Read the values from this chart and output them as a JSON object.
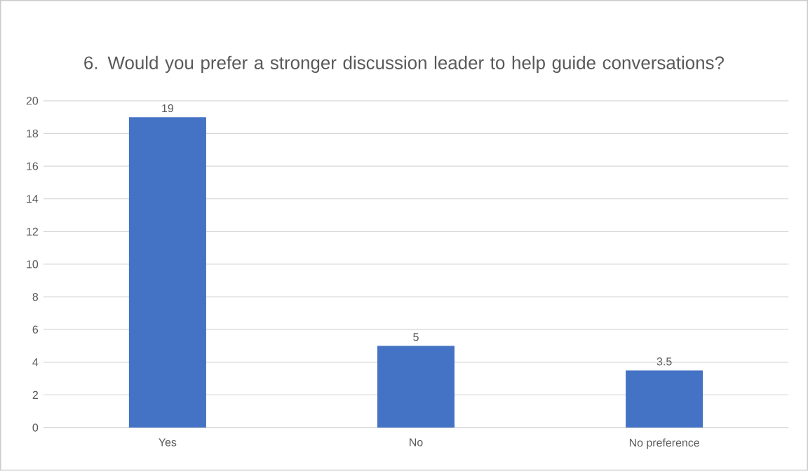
{
  "chart_data": {
    "type": "bar",
    "title": "6. Would you prefer a stronger discussion leader to help guide conversations?",
    "categories": [
      "Yes",
      "No",
      "No preference"
    ],
    "values": [
      19,
      5,
      3.5
    ],
    "color": "#4472c4",
    "ylim": [
      0,
      20
    ],
    "yticks": [
      0,
      2,
      4,
      6,
      8,
      10,
      12,
      14,
      16,
      18,
      20
    ],
    "grid": "y",
    "data_labels": true
  }
}
